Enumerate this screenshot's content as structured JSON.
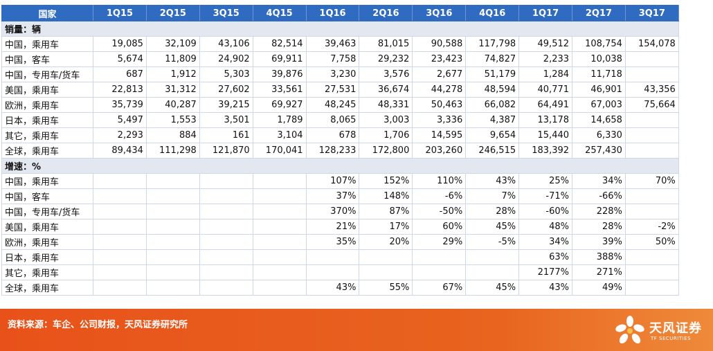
{
  "table": {
    "header": [
      "国家",
      "1Q15",
      "2Q15",
      "3Q15",
      "4Q15",
      "1Q16",
      "2Q16",
      "3Q16",
      "4Q16",
      "1Q17",
      "2Q17",
      "3Q17"
    ],
    "sections": [
      {
        "title": "销量：辆",
        "rows": [
          {
            "label": "中国，乘用车",
            "values": [
              "19,085",
              "32,109",
              "43,106",
              "82,514",
              "39,463",
              "81,015",
              "90,588",
              "117,798",
              "49,512",
              "108,754",
              "154,078"
            ]
          },
          {
            "label": "中国，客车",
            "values": [
              "5,674",
              "11,809",
              "24,902",
              "69,911",
              "7,758",
              "29,232",
              "23,423",
              "74,827",
              "2,233",
              "10,038",
              ""
            ]
          },
          {
            "label": "中国，专用车/货车",
            "values": [
              "687",
              "1,912",
              "5,303",
              "39,876",
              "3,230",
              "3,576",
              "2,677",
              "51,179",
              "1,284",
              "11,718",
              ""
            ]
          },
          {
            "label": "美国，乘用车",
            "values": [
              "22,813",
              "31,312",
              "27,602",
              "33,561",
              "27,531",
              "36,674",
              "44,278",
              "48,594",
              "40,771",
              "46,901",
              "43,356"
            ]
          },
          {
            "label": "欧洲，乘用车",
            "values": [
              "35,739",
              "40,287",
              "39,215",
              "69,927",
              "48,245",
              "48,331",
              "50,463",
              "66,082",
              "64,491",
              "67,003",
              "75,664"
            ]
          },
          {
            "label": "日本，乘用车",
            "values": [
              "5,497",
              "1,553",
              "3,501",
              "1,789",
              "8,065",
              "3,003",
              "3,336",
              "4,387",
              "13,178",
              "14,658",
              ""
            ]
          },
          {
            "label": "其它，乘用车",
            "values": [
              "2,293",
              "884",
              "161",
              "3,104",
              "678",
              "1,706",
              "14,595",
              "9,654",
              "15,440",
              "6,330",
              ""
            ]
          },
          {
            "label": "全球，乘用车",
            "values": [
              "89,434",
              "111,298",
              "121,870",
              "170,041",
              "128,233",
              "172,800",
              "203,260",
              "246,515",
              "183,392",
              "257,430",
              ""
            ]
          }
        ]
      },
      {
        "title": "增速：%",
        "rows": [
          {
            "label": "中国，乘用车",
            "values": [
              "",
              "",
              "",
              "",
              "107%",
              "152%",
              "110%",
              "43%",
              "25%",
              "34%",
              "70%"
            ]
          },
          {
            "label": "中国，客车",
            "values": [
              "",
              "",
              "",
              "",
              "37%",
              "148%",
              "-6%",
              "7%",
              "-71%",
              "-66%",
              ""
            ]
          },
          {
            "label": "中国，专用车/货车",
            "values": [
              "",
              "",
              "",
              "",
              "370%",
              "87%",
              "-50%",
              "28%",
              "-60%",
              "228%",
              ""
            ]
          },
          {
            "label": "美国，乘用车",
            "values": [
              "",
              "",
              "",
              "",
              "21%",
              "17%",
              "60%",
              "45%",
              "48%",
              "28%",
              "-2%"
            ]
          },
          {
            "label": "欧洲，乘用车",
            "values": [
              "",
              "",
              "",
              "",
              "35%",
              "20%",
              "29%",
              "-5%",
              "34%",
              "39%",
              "50%"
            ]
          },
          {
            "label": "日本，乘用车",
            "values": [
              "",
              "",
              "",
              "",
              "",
              "",
              "",
              "",
              "63%",
              "388%",
              ""
            ]
          },
          {
            "label": "其它，乘用车",
            "values": [
              "",
              "",
              "",
              "",
              "",
              "",
              "",
              "",
              "2177%",
              "271%",
              ""
            ]
          },
          {
            "label": "全球，乘用车",
            "values": [
              "",
              "",
              "",
              "",
              "43%",
              "55%",
              "67%",
              "45%",
              "43%",
              "49%",
              ""
            ]
          }
        ]
      }
    ]
  },
  "footer": {
    "source": "资料来源：车企、公司财报，天风证券研究所",
    "logo_cn": "天风证券",
    "logo_en": "TF SECURITIES",
    "background": "#e8581c"
  }
}
